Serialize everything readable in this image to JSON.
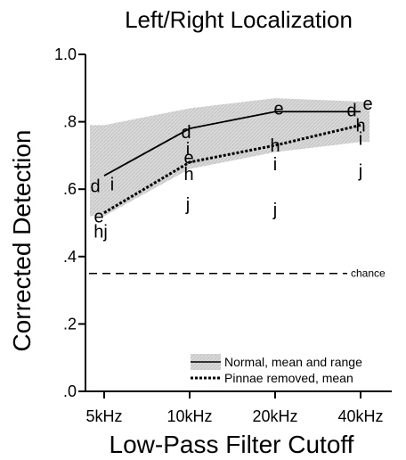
{
  "chart_data": {
    "type": "line",
    "title": "Left/Right Localization",
    "xlabel": "Low-Pass Filter Cutoff",
    "ylabel": "Corrected Detection",
    "categories": [
      "5kHz",
      "10kHz",
      "20kHz",
      "40kHz"
    ],
    "ylim": [
      0,
      1.0
    ],
    "yticks": [
      ".0",
      ".2",
      ".4",
      ".6",
      ".8",
      "1.0"
    ],
    "grid": false,
    "series": [
      {
        "name": "Normal, mean and range",
        "style": "solid",
        "values": [
          0.64,
          0.78,
          0.83,
          0.83
        ]
      },
      {
        "name": "Pinnae removed, mean",
        "style": "dotted",
        "values": [
          0.53,
          0.68,
          0.73,
          0.79
        ]
      }
    ],
    "range_band": {
      "lower": [
        0.52,
        0.66,
        0.71,
        0.74
      ],
      "upper": [
        0.79,
        0.84,
        0.87,
        0.86
      ]
    },
    "chance": {
      "value": 0.35,
      "label": "chance"
    },
    "point_labels": [
      {
        "text": "d",
        "x": "5kHz",
        "y": 0.61
      },
      {
        "text": "i",
        "x": "5kHz",
        "y": 0.615
      },
      {
        "text": "e",
        "x": "5kHz",
        "y": 0.52
      },
      {
        "text": "hj",
        "x": "5kHz",
        "y": 0.475
      },
      {
        "text": "d",
        "x": "10kHz",
        "y": 0.77
      },
      {
        "text": "i",
        "x": "10kHz",
        "y": 0.72
      },
      {
        "text": "e",
        "x": "10kHz",
        "y": 0.695
      },
      {
        "text": "h",
        "x": "10kHz",
        "y": 0.645
      },
      {
        "text": "j",
        "x": "10kHz",
        "y": 0.555
      },
      {
        "text": "e",
        "x": "20kHz",
        "y": 0.84
      },
      {
        "text": "h",
        "x": "20kHz",
        "y": 0.73
      },
      {
        "text": "i",
        "x": "20kHz",
        "y": 0.675
      },
      {
        "text": "j",
        "x": "20kHz",
        "y": 0.54
      },
      {
        "text": "d",
        "x": "40kHz",
        "y": 0.835
      },
      {
        "text": "e",
        "x": "40kHz",
        "y": 0.855
      },
      {
        "text": "h",
        "x": "40kHz",
        "y": 0.79
      },
      {
        "text": "i",
        "x": "40kHz",
        "y": 0.75
      },
      {
        "text": "j",
        "x": "40kHz",
        "y": 0.655
      }
    ],
    "colors": {
      "line": "#000000",
      "band": "#d2d2d2",
      "text": "#000000"
    },
    "legend": {
      "placement": "bottom-right"
    }
  }
}
